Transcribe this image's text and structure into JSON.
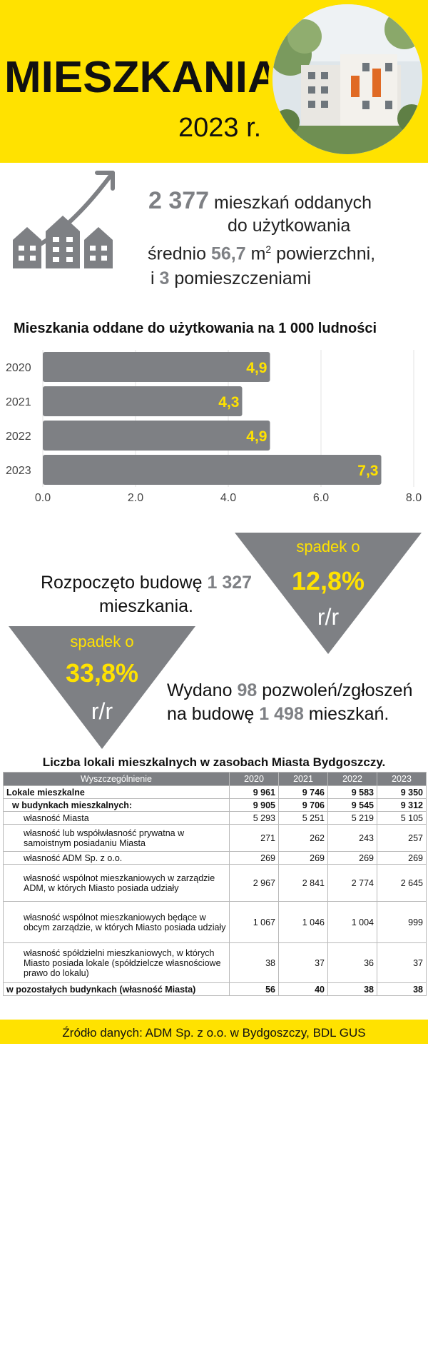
{
  "header": {
    "title": "MIESZKANIA",
    "year": "2023 r."
  },
  "stats": {
    "line1_value": "2 377",
    "line1_text": "mieszkań oddanych",
    "line2_text": "do użytkowania",
    "line3_prefix": "średnio",
    "line3_value": "56,7",
    "line3_unit": "m",
    "line3_sup": "2",
    "line3_suffix": "powierzchni,",
    "line4_prefix": "i",
    "line4_value": "3",
    "line4_suffix": "pomieszczeniami"
  },
  "chart_data": {
    "type": "bar",
    "orientation": "horizontal",
    "title": "Mieszkania oddane do użytkowania na 1 000 ludności",
    "categories": [
      "2020",
      "2021",
      "2022",
      "2023"
    ],
    "values": [
      4.9,
      4.3,
      4.9,
      7.3
    ],
    "value_labels": [
      "4,9",
      "4,3",
      "4,9",
      "7,3"
    ],
    "x_ticks": [
      "0.0",
      "2.0",
      "4.0",
      "6.0",
      "8.0"
    ],
    "xlim": [
      0,
      8
    ],
    "grid": "vertical",
    "bar_color": "#7e8084",
    "label_color": "#FFE200"
  },
  "construction": {
    "text_a": "Rozpoczęto budowę",
    "value": "1 327",
    "text_b": "mieszkania.",
    "change_label": "spadek o",
    "change_value": "12,8%",
    "change_unit": "r/r"
  },
  "permits": {
    "text_a": "Wydano",
    "permits_value": "98",
    "text_b": "pozwoleń/zgłoszeń",
    "text_c": "na budowę",
    "flats_value": "1 498",
    "text_d": "mieszkań.",
    "change_label": "spadek o",
    "change_value": "33,8%",
    "change_unit": "r/r"
  },
  "table": {
    "title": "Liczba lokali mieszkalnych w zasobach Miasta Bydgoszczy.",
    "headers": [
      "Wyszczególnienie",
      "2020",
      "2021",
      "2022",
      "2023"
    ],
    "rows": [
      {
        "label": "Lokale mieszkalne",
        "values": [
          "9 961",
          "9 746",
          "9 583",
          "9 350"
        ]
      },
      {
        "label": "w budynkach mieszkalnych:",
        "values": [
          "9 905",
          "9 706",
          "9 545",
          "9 312"
        ]
      },
      {
        "label": "własność Miasta",
        "values": [
          "5 293",
          "5 251",
          "5 219",
          "5 105"
        ]
      },
      {
        "label": "własność lub współwłasność prywatna w samoistnym posiadaniu Miasta",
        "values": [
          "271",
          "262",
          "243",
          "257"
        ]
      },
      {
        "label": "własność ADM Sp. z o.o.",
        "values": [
          "269",
          "269",
          "269",
          "269"
        ]
      },
      {
        "label": "własność wspólnot mieszkaniowych w zarządzie ADM, w których Miasto posiada udziały",
        "values": [
          "2 967",
          "2 841",
          "2 774",
          "2 645"
        ]
      },
      {
        "label": "własność wspólnot mieszkaniowych będące w obcym zarządzie, w których Miasto posiada udziały",
        "values": [
          "1 067",
          "1 046",
          "1 004",
          "999"
        ]
      },
      {
        "label": "własność spółdzielni mieszkaniowych, w których Miasto posiada lokale (spółdzielcze własnościowe prawo do lokalu)",
        "values": [
          "38",
          "37",
          "36",
          "37"
        ]
      },
      {
        "label": "w pozostałych budynkach (własność Miasta)",
        "values": [
          "56",
          "40",
          "38",
          "38"
        ]
      }
    ]
  },
  "source": "Źródło danych: ADM Sp. z o.o. w Bydgoszczy, BDL GUS",
  "colors": {
    "accent_yellow": "#FFE200",
    "grey": "#7e8084"
  }
}
